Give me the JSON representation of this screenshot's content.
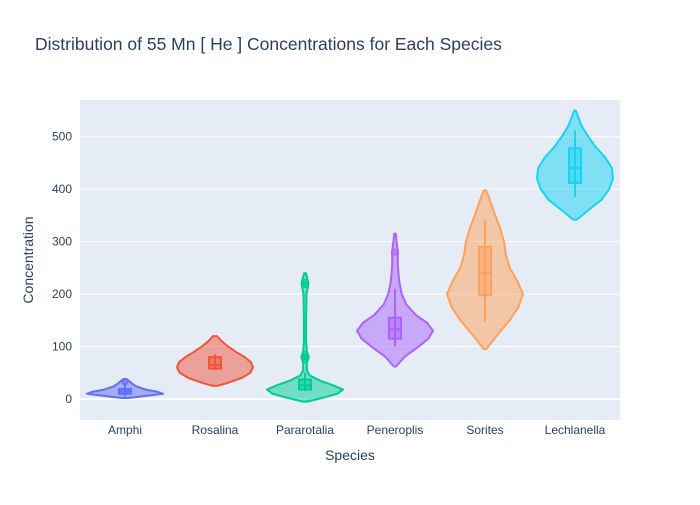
{
  "chart_data": {
    "type": "violin",
    "title": "Distribution of 55  Mn  [ He ]  Concentrations for Each Species",
    "xlabel": "Species",
    "ylabel": "Concentration",
    "ylim": [
      -40,
      570
    ],
    "yticks": [
      0,
      100,
      200,
      300,
      400,
      500
    ],
    "grid": true,
    "legend": "none",
    "categories": [
      "Amphi",
      "Rosalina",
      "Pararotalia",
      "Peneroplis",
      "Sorites",
      "Lechlanella"
    ],
    "series": [
      {
        "category": "Amphi",
        "color": "#636efa",
        "box": {
          "min": 5,
          "q1": 10,
          "median": 14,
          "q3": 19,
          "max": 30
        },
        "outliers": [
          33
        ],
        "density": [
          [
            2,
            0.1
          ],
          [
            6,
            0.55
          ],
          [
            10,
            1.0
          ],
          [
            14,
            0.85
          ],
          [
            18,
            0.55
          ],
          [
            24,
            0.3
          ],
          [
            30,
            0.18
          ],
          [
            35,
            0.1
          ],
          [
            38,
            0.04
          ]
        ]
      },
      {
        "category": "Rosalina",
        "color": "#ef553b",
        "box": {
          "min": 55,
          "q1": 58,
          "median": 65,
          "q3": 80,
          "max": 85
        },
        "outliers": [],
        "density": [
          [
            25,
            0.05
          ],
          [
            30,
            0.3
          ],
          [
            40,
            0.7
          ],
          [
            50,
            0.93
          ],
          [
            60,
            1.0
          ],
          [
            70,
            0.95
          ],
          [
            80,
            0.78
          ],
          [
            90,
            0.55
          ],
          [
            100,
            0.35
          ],
          [
            110,
            0.18
          ],
          [
            120,
            0.05
          ]
        ]
      },
      {
        "category": "Pararotalia",
        "color": "#00cc96",
        "box": {
          "min": 15,
          "q1": 18,
          "median": 26,
          "q3": 37,
          "max": 50
        },
        "outliers": [
          75,
          80,
          85,
          218,
          222
        ],
        "density": [
          [
            -5,
            0.05
          ],
          [
            2,
            0.45
          ],
          [
            10,
            0.85
          ],
          [
            18,
            1.0
          ],
          [
            26,
            0.75
          ],
          [
            35,
            0.4
          ],
          [
            45,
            0.12
          ],
          [
            55,
            0.05
          ],
          [
            70,
            0.05
          ],
          [
            80,
            0.1
          ],
          [
            90,
            0.05
          ],
          [
            110,
            0.03
          ],
          [
            150,
            0.03
          ],
          [
            200,
            0.04
          ],
          [
            215,
            0.08
          ],
          [
            222,
            0.09
          ],
          [
            230,
            0.06
          ],
          [
            240,
            0.02
          ]
        ]
      },
      {
        "category": "Peneroplis",
        "color": "#ab63fa",
        "box": {
          "min": 100,
          "q1": 115,
          "median": 133,
          "q3": 155,
          "max": 210
        },
        "outliers": [
          280
        ],
        "density": [
          [
            62,
            0.03
          ],
          [
            80,
            0.25
          ],
          [
            100,
            0.62
          ],
          [
            115,
            0.88
          ],
          [
            130,
            1.0
          ],
          [
            145,
            0.85
          ],
          [
            160,
            0.55
          ],
          [
            180,
            0.3
          ],
          [
            200,
            0.18
          ],
          [
            220,
            0.12
          ],
          [
            240,
            0.09
          ],
          [
            260,
            0.07
          ],
          [
            280,
            0.08
          ],
          [
            295,
            0.05
          ],
          [
            315,
            0.02
          ]
        ]
      },
      {
        "category": "Sorites",
        "color": "#ffa15a",
        "box": {
          "min": 148,
          "q1": 198,
          "median": 240,
          "q3": 290,
          "max": 342
        },
        "outliers": [],
        "density": [
          [
            95,
            0.03
          ],
          [
            120,
            0.3
          ],
          [
            150,
            0.65
          ],
          [
            175,
            0.88
          ],
          [
            200,
            1.0
          ],
          [
            225,
            0.85
          ],
          [
            250,
            0.65
          ],
          [
            275,
            0.55
          ],
          [
            300,
            0.5
          ],
          [
            325,
            0.4
          ],
          [
            350,
            0.27
          ],
          [
            375,
            0.15
          ],
          [
            398,
            0.03
          ]
        ]
      },
      {
        "category": "Lechlanella",
        "color": "#19d3f3",
        "box": {
          "min": 385,
          "q1": 412,
          "median": 440,
          "q3": 478,
          "max": 512
        },
        "outliers": [],
        "density": [
          [
            342,
            0.05
          ],
          [
            360,
            0.35
          ],
          [
            380,
            0.7
          ],
          [
            400,
            0.9
          ],
          [
            420,
            1.0
          ],
          [
            440,
            0.97
          ],
          [
            460,
            0.8
          ],
          [
            480,
            0.55
          ],
          [
            500,
            0.35
          ],
          [
            520,
            0.18
          ],
          [
            540,
            0.07
          ],
          [
            550,
            0.02
          ]
        ]
      }
    ]
  }
}
